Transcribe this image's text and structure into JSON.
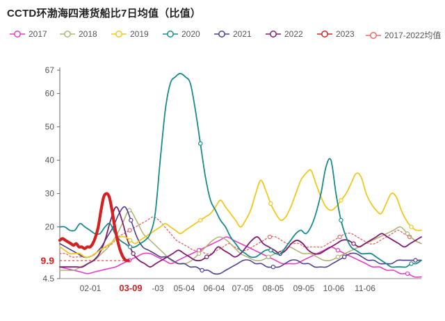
{
  "chart_data": {
    "type": "line",
    "title": "CCTD环渤海四港货船比7日均值（比值）",
    "xlabel": "",
    "ylabel": "",
    "ylim": [
      4.5,
      67
    ],
    "y_ticks": [
      4.5,
      20,
      30,
      40,
      50,
      60,
      67
    ],
    "x_tick_labels": [
      "02-01",
      "03-09",
      "-03",
      "05-04",
      "06-04",
      "07-05",
      "08-05",
      "09-05",
      "10-06",
      "11-06"
    ],
    "highlight": {
      "x_label": "03-09",
      "y_label": "9.9",
      "value": 9.9,
      "series": "2023"
    },
    "legend_position": "top",
    "grid": false,
    "series": [
      {
        "name": "2017",
        "color": "#e63cc8",
        "dashed": false,
        "width": 1.6,
        "values": [
          8,
          7.5,
          7,
          6.5,
          6,
          6.5,
          7,
          7.5,
          8,
          9,
          10,
          11,
          12,
          12,
          11,
          10,
          9,
          10,
          11,
          12,
          13,
          14,
          15,
          16,
          17,
          16,
          15,
          14,
          13,
          12,
          11,
          10,
          9,
          9,
          9,
          10,
          11,
          12,
          13,
          14,
          13,
          12,
          11,
          10,
          9,
          8,
          8,
          7,
          7,
          6,
          6,
          5,
          5
        ]
      },
      {
        "name": "2018",
        "color": "#b3b37a",
        "dashed": false,
        "width": 1.6,
        "values": [
          7,
          7,
          7,
          8,
          9,
          10,
          12,
          14,
          17,
          21,
          25,
          22,
          18,
          16,
          14,
          12,
          10,
          9,
          9,
          10,
          12,
          14,
          16,
          17,
          16,
          14,
          12,
          11,
          10,
          10,
          11,
          12,
          13,
          14,
          13,
          12,
          12,
          11,
          10,
          10,
          11,
          12,
          13,
          14,
          15,
          16,
          17,
          18,
          19,
          20,
          18,
          16,
          15
        ]
      },
      {
        "name": "2019",
        "color": "#f2c81e",
        "dashed": false,
        "width": 1.8,
        "values": [
          14,
          13,
          12,
          12,
          12,
          11,
          11,
          12,
          13,
          14,
          15,
          16,
          17,
          17,
          16,
          15,
          16,
          17,
          18,
          19,
          20,
          21,
          20,
          19,
          18,
          19,
          20,
          21,
          22,
          23,
          24,
          26,
          28,
          26,
          24,
          22,
          20,
          22,
          25,
          30,
          34,
          31,
          27,
          24,
          22,
          23,
          26,
          30,
          34,
          36,
          37,
          33,
          29,
          26,
          25,
          26,
          28,
          30,
          33,
          36,
          35,
          30,
          27,
          25,
          24,
          27,
          30,
          29,
          25,
          22,
          20,
          19,
          19
        ]
      },
      {
        "name": "2020",
        "color": "#188a8a",
        "dashed": false,
        "width": 1.8,
        "values": [
          20,
          20,
          19,
          19,
          21,
          20,
          19,
          18,
          18,
          20,
          21,
          18,
          16,
          15,
          14,
          14,
          15,
          16,
          18,
          24,
          40,
          55,
          63,
          65,
          66,
          65,
          63,
          55,
          45,
          35,
          28,
          25,
          22,
          20,
          17,
          15,
          13,
          12,
          11,
          11,
          12,
          13,
          13,
          12,
          12,
          14,
          16,
          18,
          19,
          18,
          20,
          24,
          30,
          38,
          40,
          30,
          22,
          17,
          14,
          13,
          12,
          12,
          12,
          11,
          10,
          9,
          8,
          8,
          8,
          8,
          9,
          9,
          10
        ]
      },
      {
        "name": "2021",
        "color": "#4f3d8f",
        "dashed": false,
        "width": 1.6,
        "values": [
          15,
          14,
          13,
          12,
          11,
          11,
          12,
          14,
          17,
          20,
          24,
          26,
          22,
          17,
          14,
          13,
          12,
          11,
          11,
          10,
          9,
          9,
          8,
          8,
          7,
          7,
          6,
          6,
          7,
          8,
          9,
          10,
          10,
          9,
          9,
          8,
          8,
          8,
          9,
          10,
          10,
          9,
          9,
          8,
          8,
          8,
          9,
          10,
          11,
          12,
          12,
          11,
          10,
          10,
          9,
          9,
          9,
          10,
          10,
          10,
          10,
          10
        ]
      },
      {
        "name": "2022",
        "color": "#7e1d6e",
        "dashed": false,
        "width": 1.8,
        "values": [
          8,
          8,
          8,
          8,
          8,
          9,
          10,
          12,
          16,
          22,
          26,
          22,
          16,
          12,
          10,
          9,
          8,
          9,
          10,
          11,
          12,
          13,
          12,
          11,
          10,
          10,
          11,
          12,
          14,
          13,
          12,
          11,
          12,
          14,
          16,
          17,
          15,
          14,
          13,
          12,
          13,
          15,
          16,
          15,
          13,
          12,
          12,
          13,
          14,
          15,
          16,
          16,
          15,
          14,
          15,
          16,
          17,
          18,
          17,
          16,
          15,
          14,
          15,
          16,
          17
        ]
      },
      {
        "name": "2023",
        "color": "#d62020",
        "dashed": false,
        "width": 4.2,
        "values": [
          16,
          16.5,
          16,
          15.5,
          15,
          14.5,
          15,
          14,
          14,
          13.5,
          14,
          14,
          15,
          17,
          20,
          25,
          29,
          30,
          29,
          25,
          20,
          16,
          13,
          11,
          10,
          9.9
        ]
      },
      {
        "name": "2017-2022均值",
        "color": "#e76a6a",
        "dashed": true,
        "width": 1.4,
        "values": [
          12,
          12,
          11,
          11,
          11,
          11,
          12,
          13,
          14,
          15,
          17,
          18,
          19,
          20,
          21,
          22,
          23,
          22,
          20,
          18,
          16,
          15,
          14,
          13,
          13,
          12,
          12,
          13,
          14,
          15,
          14,
          13,
          13,
          14,
          15,
          16,
          17,
          17,
          16,
          15,
          15,
          15,
          14,
          14,
          14,
          14,
          15,
          16,
          17,
          18,
          18,
          17,
          16,
          15,
          15,
          16,
          17,
          18,
          19,
          18,
          17,
          16,
          15
        ]
      }
    ]
  }
}
